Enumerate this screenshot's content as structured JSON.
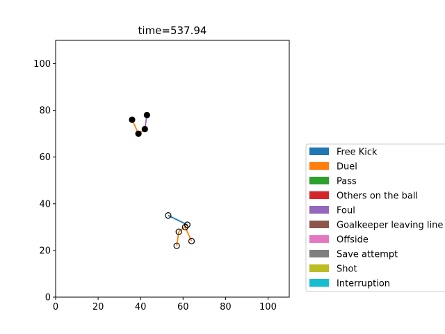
{
  "chart_data": {
    "type": "scatter",
    "title": "time=537.94",
    "xlabel": "",
    "ylabel": "",
    "xlim": [
      0,
      110
    ],
    "ylim": [
      0,
      110
    ],
    "xticks": [
      "0",
      "20",
      "40",
      "60",
      "80",
      "100"
    ],
    "yticks": [
      "0",
      "20",
      "40",
      "60",
      "80",
      "100"
    ],
    "grid": false,
    "legend": {
      "placement": "right",
      "entries": [
        {
          "label": "Free Kick",
          "color": "#1f77b4"
        },
        {
          "label": "Duel",
          "color": "#ff7f0e"
        },
        {
          "label": "Pass",
          "color": "#2ca02c"
        },
        {
          "label": "Others on the ball",
          "color": "#d62728"
        },
        {
          "label": "Foul",
          "color": "#9467bd"
        },
        {
          "label": "Goalkeeper leaving line",
          "color": "#8c564b"
        },
        {
          "label": "Offside",
          "color": "#e377c2"
        },
        {
          "label": "Save attempt",
          "color": "#7f7f7f"
        },
        {
          "label": "Shot",
          "color": "#bcbd22"
        },
        {
          "label": "Interruption",
          "color": "#17becf"
        }
      ]
    },
    "segments": [
      {
        "event": "Duel",
        "color": "#ff7f0e",
        "from": [
          36,
          76
        ],
        "to": [
          39,
          70
        ]
      },
      {
        "event": "Duel",
        "color": "#ff7f0e",
        "from": [
          39,
          70
        ],
        "to": [
          42,
          72
        ]
      },
      {
        "event": "Foul",
        "color": "#9467bd",
        "from": [
          42,
          72
        ],
        "to": [
          43,
          78
        ]
      },
      {
        "event": "Free Kick",
        "color": "#1f77b4",
        "from": [
          53,
          35
        ],
        "to": [
          62,
          31
        ]
      },
      {
        "event": "Duel",
        "color": "#ff7f0e",
        "from": [
          62,
          31
        ],
        "to": [
          58,
          28
        ]
      },
      {
        "event": "Duel",
        "color": "#ff7f0e",
        "from": [
          58,
          28
        ],
        "to": [
          57,
          22
        ]
      },
      {
        "event": "Duel",
        "color": "#ff7f0e",
        "from": [
          61,
          30
        ],
        "to": [
          64,
          24
        ]
      }
    ],
    "points": [
      {
        "x": 36,
        "y": 76,
        "filled": true
      },
      {
        "x": 39,
        "y": 70,
        "filled": true
      },
      {
        "x": 42,
        "y": 72,
        "filled": true
      },
      {
        "x": 43,
        "y": 78,
        "filled": true
      },
      {
        "x": 53,
        "y": 35,
        "filled": false
      },
      {
        "x": 62,
        "y": 31,
        "filled": false
      },
      {
        "x": 58,
        "y": 28,
        "filled": false
      },
      {
        "x": 61,
        "y": 30,
        "filled": false
      },
      {
        "x": 57,
        "y": 22,
        "filled": false
      },
      {
        "x": 64,
        "y": 24,
        "filled": false
      }
    ]
  }
}
